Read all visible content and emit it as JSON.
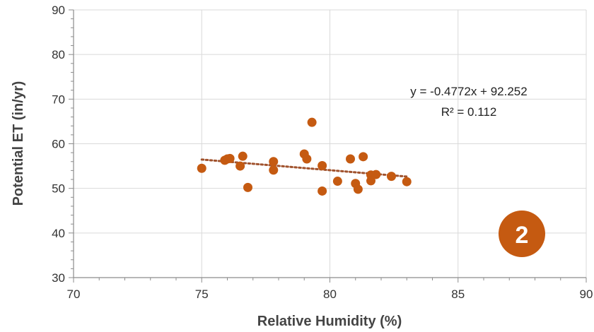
{
  "chart_data": {
    "type": "scatter",
    "xlabel": "Relative Humidity (%)",
    "ylabel": "Potential ET (in/yr)",
    "xlim": [
      70,
      90
    ],
    "ylim": [
      30,
      90
    ],
    "x_ticks": [
      70,
      75,
      80,
      85,
      90
    ],
    "y_ticks": [
      30,
      40,
      50,
      60,
      70,
      80,
      90
    ],
    "x_minor_step": 1,
    "y_minor_step": 2,
    "grid": "major-vertical-and-horizontal",
    "marker_color": "#C55A11",
    "series": [
      {
        "x": [
          75.0,
          75.9,
          76.0,
          76.1,
          76.5,
          76.6,
          76.8,
          77.8,
          77.8,
          79.0,
          79.1,
          79.3,
          79.7,
          79.7,
          80.3,
          80.8,
          81.0,
          81.1,
          81.3,
          81.6,
          81.6,
          81.8,
          82.4,
          83.0
        ],
        "y": [
          54.5,
          56.3,
          56.6,
          56.7,
          55.0,
          57.2,
          50.2,
          54.1,
          56.0,
          57.7,
          56.6,
          64.8,
          55.1,
          49.4,
          51.6,
          56.6,
          51.1,
          49.8,
          57.1,
          53.0,
          51.7,
          53.1,
          52.7,
          51.5
        ]
      }
    ],
    "trendline": {
      "slope": -0.4772,
      "intercept": 92.252,
      "x_range": [
        75.0,
        83.0
      ],
      "color": "#A0522D",
      "style": "dotted",
      "equation": "y = -0.4772x + 92.252",
      "r_squared": "R² = 0.112"
    },
    "badge": {
      "label": "2",
      "color": "#C55A11"
    }
  }
}
